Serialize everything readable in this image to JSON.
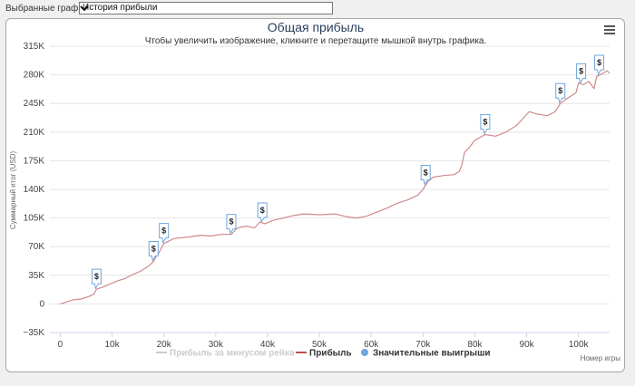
{
  "topbar": {
    "label": "Выбранные графики:",
    "selected": "История прибыли"
  },
  "chart_data": {
    "type": "line",
    "title": "Общая прибыль",
    "subtitle": "Чтобы увеличить изображение, кликните и перетащите мышкой внутрь графика.",
    "ylabel": "Суммарный итог (USD)",
    "xlabel": "Номер игры",
    "ylim": [
      -35000,
      315000
    ],
    "xlim": [
      -2000,
      106000
    ],
    "y_ticks": [
      -35000,
      0,
      35000,
      70000,
      105000,
      140000,
      175000,
      210000,
      245000,
      280000,
      315000
    ],
    "y_tick_labels": [
      "−35K",
      "0",
      "35K",
      "70K",
      "105K",
      "140K",
      "175K",
      "210K",
      "245K",
      "280K",
      "315K"
    ],
    "x_ticks": [
      0,
      10000,
      20000,
      30000,
      40000,
      50000,
      60000,
      70000,
      80000,
      90000,
      100000
    ],
    "x_tick_labels": [
      "0",
      "10k",
      "20k",
      "30k",
      "40k",
      "50k",
      "60k",
      "70k",
      "80k",
      "90k",
      "100k"
    ],
    "grid": true,
    "legend_position": "bottom",
    "legend": [
      {
        "name": "Прибыль за минусом рейка",
        "color": "#cccccc",
        "symbol": "line"
      },
      {
        "name": "Прибыль",
        "color": "#c0504d",
        "symbol": "line"
      },
      {
        "name": "Значительные выигрыши",
        "color": "#6ea6dc",
        "symbol": "dot"
      }
    ],
    "series": [
      {
        "name": "Прибыль",
        "color": "#d08a8a",
        "points": [
          [
            0,
            0
          ],
          [
            1500,
            3000
          ],
          [
            2500,
            5000
          ],
          [
            4000,
            6000
          ],
          [
            5500,
            9000
          ],
          [
            6500,
            12000
          ],
          [
            7000,
            18000
          ],
          [
            8000,
            20000
          ],
          [
            9500,
            24000
          ],
          [
            11000,
            28000
          ],
          [
            12500,
            31000
          ],
          [
            14000,
            36000
          ],
          [
            15500,
            40000
          ],
          [
            17000,
            46000
          ],
          [
            18000,
            52000
          ],
          [
            18500,
            58000
          ],
          [
            19000,
            62000
          ],
          [
            19500,
            68000
          ],
          [
            20000,
            74000
          ],
          [
            21000,
            77000
          ],
          [
            22000,
            80000
          ],
          [
            23500,
            81000
          ],
          [
            25000,
            82000
          ],
          [
            27000,
            84000
          ],
          [
            29000,
            83000
          ],
          [
            31000,
            85000
          ],
          [
            33000,
            85000
          ],
          [
            34000,
            92000
          ],
          [
            35000,
            94000
          ],
          [
            36000,
            95000
          ],
          [
            37500,
            93000
          ],
          [
            38500,
            100000
          ],
          [
            39500,
            98000
          ],
          [
            41000,
            102000
          ],
          [
            43000,
            105000
          ],
          [
            45000,
            108000
          ],
          [
            47000,
            110000
          ],
          [
            50000,
            109000
          ],
          [
            53000,
            110000
          ],
          [
            55000,
            107000
          ],
          [
            57000,
            105000
          ],
          [
            59000,
            107000
          ],
          [
            61000,
            112000
          ],
          [
            63000,
            117000
          ],
          [
            65000,
            123000
          ],
          [
            67000,
            127000
          ],
          [
            69000,
            133000
          ],
          [
            70000,
            140000
          ],
          [
            71000,
            150000
          ],
          [
            72000,
            155000
          ],
          [
            74000,
            157000
          ],
          [
            76000,
            158000
          ],
          [
            77000,
            162000
          ],
          [
            77500,
            170000
          ],
          [
            78000,
            185000
          ],
          [
            79000,
            192000
          ],
          [
            80000,
            200000
          ],
          [
            82000,
            207000
          ],
          [
            84000,
            205000
          ],
          [
            86000,
            210000
          ],
          [
            88000,
            218000
          ],
          [
            89500,
            228000
          ],
          [
            90500,
            235000
          ],
          [
            92000,
            232000
          ],
          [
            94000,
            230000
          ],
          [
            95500,
            235000
          ],
          [
            96500,
            245000
          ],
          [
            98000,
            252000
          ],
          [
            99500,
            258000
          ],
          [
            100000,
            270000
          ],
          [
            101000,
            268000
          ],
          [
            102000,
            272000
          ],
          [
            103000,
            263000
          ],
          [
            103500,
            278000
          ],
          [
            104500,
            281000
          ],
          [
            105500,
            285000
          ],
          [
            106000,
            282000
          ]
        ]
      }
    ],
    "markers": {
      "label": "$",
      "x": [
        7000,
        18000,
        20000,
        33000,
        39000,
        70500,
        82000,
        96500,
        100500,
        104000
      ]
    }
  }
}
